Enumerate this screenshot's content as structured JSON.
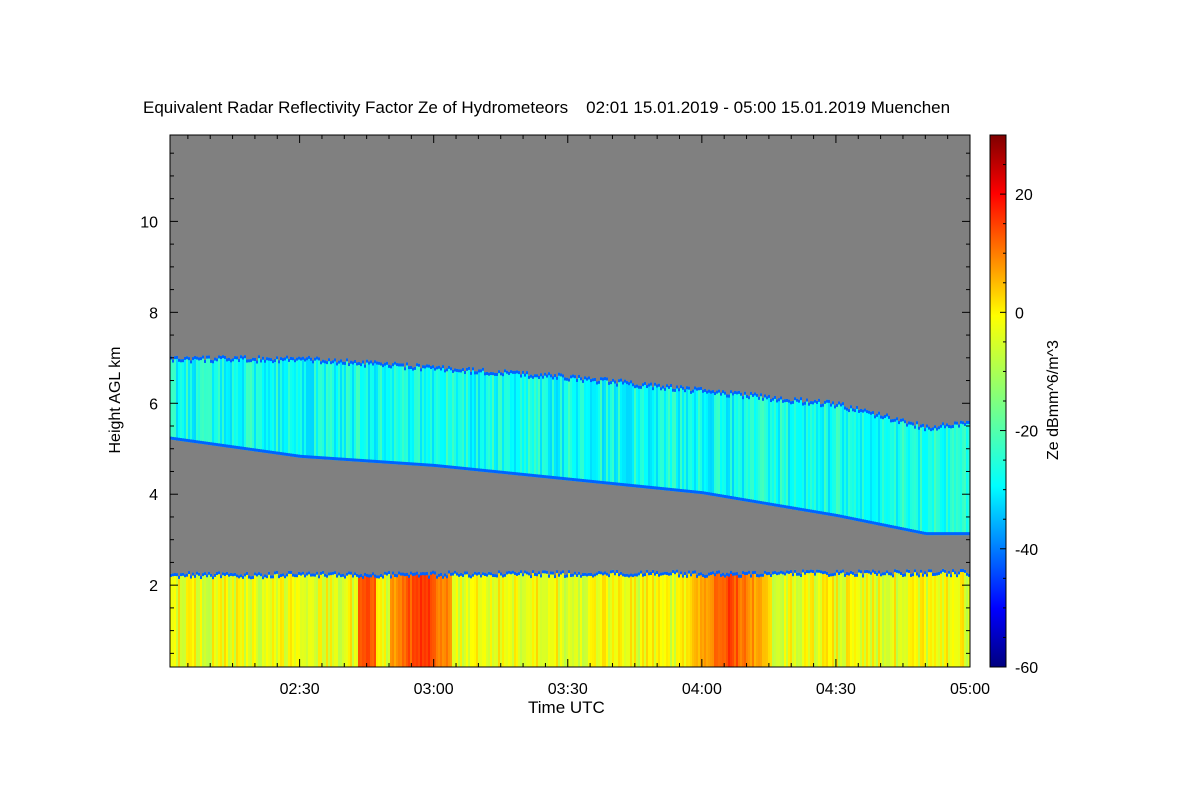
{
  "chart_data": {
    "type": "heatmap",
    "title": "Equivalent Radar Reflectivity Factor Ze of Hydrometeors",
    "subtitle": "02:01 15.01.2019 - 05:00 15.01.2019 Muenchen",
    "xlabel": "Time UTC",
    "ylabel": "Height AGL km",
    "colorbar_label": "Ze dBmm^6/m^3",
    "x_range_minutes_utc": [
      121,
      300
    ],
    "y_range_km": [
      0.2,
      11.9
    ],
    "x_ticks": [
      {
        "label": "02:30",
        "value": 150
      },
      {
        "label": "03:00",
        "value": 180
      },
      {
        "label": "03:30",
        "value": 210
      },
      {
        "label": "04:00",
        "value": 240
      },
      {
        "label": "04:30",
        "value": 270
      },
      {
        "label": "05:00",
        "value": 300
      }
    ],
    "y_ticks": [
      {
        "label": "2",
        "value": 2
      },
      {
        "label": "4",
        "value": 4
      },
      {
        "label": "6",
        "value": 6
      },
      {
        "label": "8",
        "value": 8
      },
      {
        "label": "10",
        "value": 10
      }
    ],
    "colorbar": {
      "range": [
        -60,
        30
      ],
      "ticks": [
        {
          "label": "20",
          "value": 20
        },
        {
          "label": "0",
          "value": 0
        },
        {
          "label": "-20",
          "value": -20
        },
        {
          "label": "-40",
          "value": -40
        },
        {
          "label": "-60",
          "value": -60
        }
      ],
      "colormap": "jet"
    },
    "background_color": "#808080",
    "layers": [
      {
        "name_hint": "upper cloud layer",
        "top_km": [
          [
            121,
            7.0
          ],
          [
            150,
            7.0
          ],
          [
            180,
            6.8
          ],
          [
            210,
            6.6
          ],
          [
            240,
            6.3
          ],
          [
            270,
            6.0
          ],
          [
            290,
            5.5
          ],
          [
            300,
            5.6
          ]
        ],
        "base_km": [
          [
            121,
            5.2
          ],
          [
            150,
            4.8
          ],
          [
            180,
            4.6
          ],
          [
            210,
            4.3
          ],
          [
            240,
            4.0
          ],
          [
            270,
            3.5
          ],
          [
            290,
            3.1
          ],
          [
            300,
            3.1
          ]
        ],
        "typical_ze_dbz": -25
      },
      {
        "name_hint": "lower precipitation layer",
        "top_km": [
          [
            121,
            2.25
          ],
          [
            300,
            2.3
          ]
        ],
        "base_km": [
          [
            121,
            0.2
          ],
          [
            300,
            0.2
          ]
        ],
        "typical_ze_dbz": -5,
        "intense_columns": [
          {
            "center": 165,
            "half_width": 2,
            "ze_dbz": 12
          },
          {
            "center": 177,
            "half_width": 7,
            "ze_dbz": 15
          },
          {
            "center": 246,
            "half_width": 9,
            "ze_dbz": 13
          }
        ]
      }
    ]
  }
}
